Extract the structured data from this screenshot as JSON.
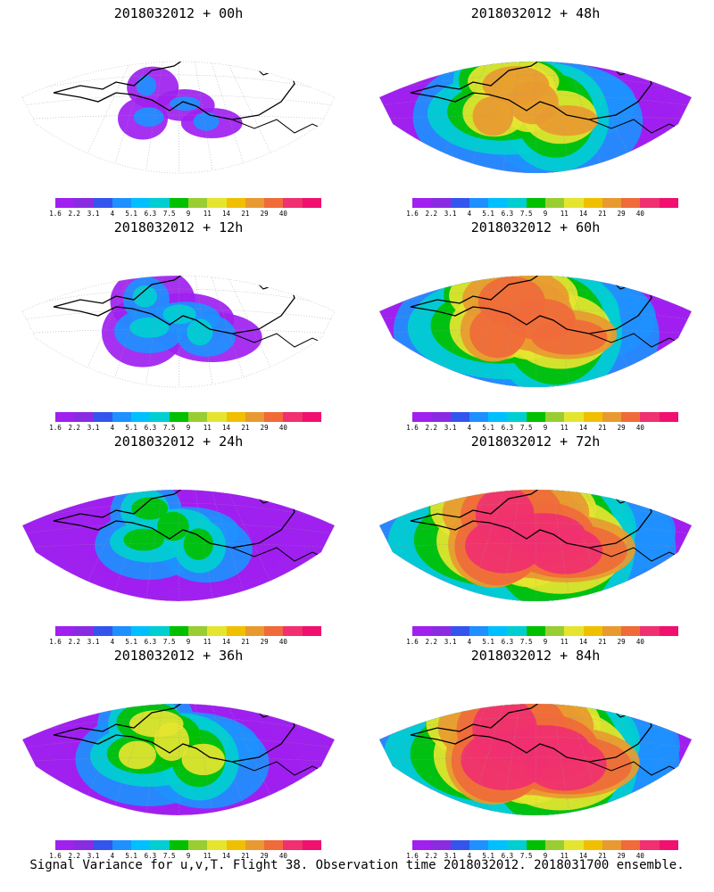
{
  "panels": [
    {
      "title": "2018032012 + 00h",
      "level": 0
    },
    {
      "title": "2018032012 + 48h",
      "level": 4
    },
    {
      "title": "2018032012 + 12h",
      "level": 1
    },
    {
      "title": "2018032012 + 60h",
      "level": 5
    },
    {
      "title": "2018032012 + 24h",
      "level": 2
    },
    {
      "title": "2018032012 + 72h",
      "level": 6
    },
    {
      "title": "2018032012 + 36h",
      "level": 3
    },
    {
      "title": "2018032012 + 84h",
      "level": 7
    }
  ],
  "colorbar": {
    "labels": [
      "1.6",
      "2.2",
      "3.1",
      "4",
      "5.1",
      "6.3",
      "7.5",
      "9",
      "11",
      "14",
      "21",
      "29",
      "40"
    ],
    "colors": [
      "#a020f0",
      "#8a2be2",
      "#3355ee",
      "#1e90ff",
      "#00bfff",
      "#00ced1",
      "#00c000",
      "#9acd32",
      "#e5e530",
      "#f0c000",
      "#e89a30",
      "#f06a3a",
      "#f03070",
      "#f01070"
    ]
  },
  "caption": "Signal Variance for u,v,T. Flight 38. Observation time 2018032012. 2018031700 ensemble."
}
